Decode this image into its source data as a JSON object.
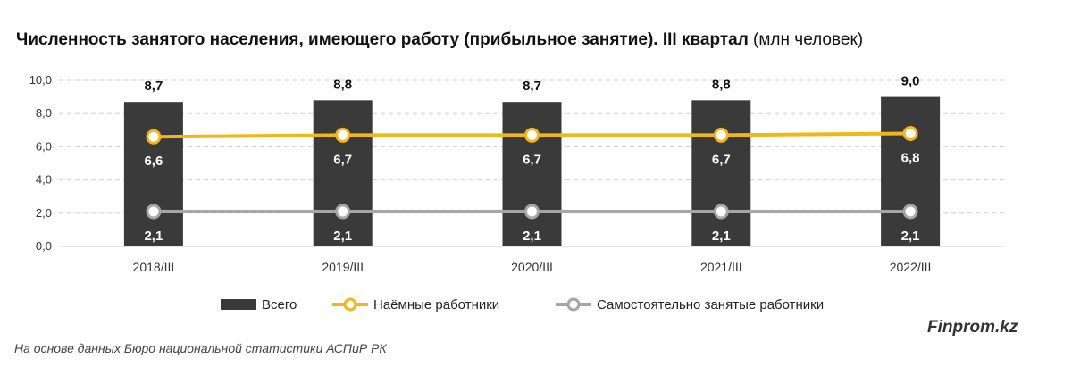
{
  "header": {
    "title": "Численность занятого населения, имеющего работу (прибыльное занятие). III квартал",
    "unit": "(млн человек)"
  },
  "footer": {
    "source": "На основе данных Бюро национальной статистики АСПиР РК",
    "brand": "Finprom.kz"
  },
  "chart_data": {
    "type": "bar",
    "categories": [
      "2018/III",
      "2019/III",
      "2020/III",
      "2021/III",
      "2022/III"
    ],
    "ylim": [
      0,
      10
    ],
    "yticks": [
      "0,0",
      "2,0",
      "4,0",
      "6,0",
      "8,0",
      "10,0"
    ],
    "grid": true,
    "legend_position": "bottom",
    "series": [
      {
        "name": "Всего",
        "kind": "bar",
        "color": "#3a3a3a",
        "values": [
          8.7,
          8.8,
          8.7,
          8.8,
          9.0
        ],
        "labels": [
          "8,7",
          "8,8",
          "8,7",
          "8,8",
          "9,0"
        ]
      },
      {
        "name": "Наёмные работники",
        "kind": "line",
        "color": "#f2b619",
        "values": [
          6.6,
          6.7,
          6.7,
          6.7,
          6.8
        ],
        "labels": [
          "6,6",
          "6,7",
          "6,7",
          "6,7",
          "6,8"
        ]
      },
      {
        "name": "Самостоятельно занятые работники",
        "kind": "line",
        "color": "#a6a6a6",
        "values": [
          2.1,
          2.1,
          2.1,
          2.1,
          2.1
        ],
        "labels": [
          "2,1",
          "2,1",
          "2,1",
          "2,1",
          "2,1"
        ]
      }
    ]
  }
}
